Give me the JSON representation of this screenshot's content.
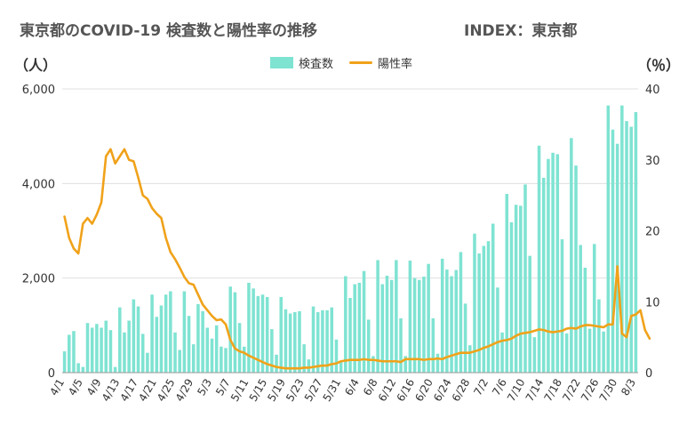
{
  "title": "東京都のCOVID-19 検査数と陽性率の推移",
  "index_label": "INDEX：東京都",
  "left_unit": "（人）",
  "right_unit": "（％）",
  "colors": {
    "bar": "#7fe3d2",
    "line": "#f0a21a",
    "grid": "#e0e0e0",
    "axis_text": "#333333"
  },
  "chart_data": {
    "type": "bar+line",
    "series": [
      {
        "name": "検査数",
        "type": "bar",
        "axis": "left",
        "values": [
          450,
          800,
          880,
          200,
          120,
          1050,
          950,
          1030,
          950,
          1100,
          900,
          120,
          1380,
          850,
          1100,
          1550,
          1400,
          820,
          420,
          1650,
          1180,
          1420,
          1650,
          1720,
          850,
          480,
          1720,
          1200,
          600,
          1450,
          1300,
          950,
          720,
          1000,
          550,
          520,
          1820,
          1700,
          1050,
          550,
          1900,
          1780,
          1620,
          1650,
          1600,
          920,
          380,
          1600,
          1340,
          1250,
          1280,
          1300,
          600,
          280,
          1400,
          1280,
          1320,
          1320,
          1380,
          700,
          250,
          2040,
          1580,
          1870,
          1900,
          2150,
          1120,
          350,
          2380,
          1870,
          2050,
          1960,
          2380,
          1150,
          350,
          2370,
          2000,
          1960,
          2030,
          2300,
          1150,
          400,
          2410,
          2180,
          2040,
          2170,
          2550,
          1460,
          580,
          2940,
          2520,
          2680,
          2780,
          3150,
          1800,
          850,
          3780,
          3180,
          3550,
          3530,
          3980,
          2470,
          750,
          4800,
          4120,
          4520,
          4650,
          4620,
          2820,
          830,
          4960,
          4380,
          2700,
          2220,
          930,
          2720,
          1550,
          870,
          5650,
          5140,
          4840,
          5650,
          5320,
          5200,
          5510
        ]
      },
      {
        "name": "陽性率",
        "type": "line",
        "axis": "right",
        "values": [
          22,
          19,
          17.5,
          16.8,
          21,
          21.8,
          21,
          22.3,
          24,
          30.5,
          31.5,
          29.5,
          30.5,
          31.5,
          30,
          29.8,
          27.5,
          25,
          24.5,
          23.2,
          22.4,
          21.8,
          19,
          17,
          16,
          14.8,
          13.5,
          12.6,
          12.4,
          11,
          9.6,
          8.8,
          8,
          7.4,
          7.5,
          6.8,
          4.6,
          3.4,
          3,
          2.8,
          2.4,
          2.1,
          1.8,
          1.5,
          1.2,
          1.0,
          0.8,
          0.7,
          0.6,
          0.6,
          0.6,
          0.6,
          0.7,
          0.7,
          0.8,
          0.9,
          1.0,
          1.0,
          1.2,
          1.3,
          1.6,
          1.7,
          1.8,
          1.8,
          1.8,
          1.9,
          1.8,
          1.8,
          1.7,
          1.6,
          1.6,
          1.6,
          1.6,
          1.5,
          1.9,
          1.9,
          1.9,
          1.9,
          1.8,
          1.9,
          1.9,
          2.0,
          1.9,
          2.2,
          2.4,
          2.6,
          2.8,
          2.8,
          2.8,
          3.0,
          3.2,
          3.5,
          3.7,
          4.0,
          4.3,
          4.5,
          4.6,
          4.8,
          5.2,
          5.5,
          5.6,
          5.7,
          5.9,
          6.1,
          6.0,
          5.8,
          5.7,
          5.8,
          5.9,
          6.2,
          6.3,
          6.2,
          6.5,
          6.7,
          6.7,
          6.6,
          6.5,
          6.4,
          6.8,
          6.8,
          15,
          5.5,
          5,
          8,
          8.2,
          8.8,
          6,
          4.8
        ]
      }
    ],
    "x_labels": [
      "4/1",
      "4/5",
      "4/9",
      "4/13",
      "4/17",
      "4/21",
      "4/25",
      "4/29",
      "5/3",
      "5/7",
      "5/11",
      "5/15",
      "5/19",
      "5/23",
      "5/27",
      "5/31",
      "6/4",
      "6/8",
      "6/12",
      "6/16",
      "6/20",
      "6/24",
      "6/28",
      "7/2",
      "7/6",
      "7/10",
      "7/14",
      "7/18",
      "7/22",
      "7/26",
      "7/30",
      "8/3"
    ],
    "y_left": {
      "ticks": [
        "0",
        "2,000",
        "4,000",
        "6,000"
      ],
      "range": [
        0,
        6000
      ]
    },
    "y_right": {
      "ticks": [
        "0",
        "10",
        "20",
        "30",
        "40"
      ],
      "range": [
        0,
        40
      ]
    },
    "grid": true,
    "legend": "top-center"
  }
}
